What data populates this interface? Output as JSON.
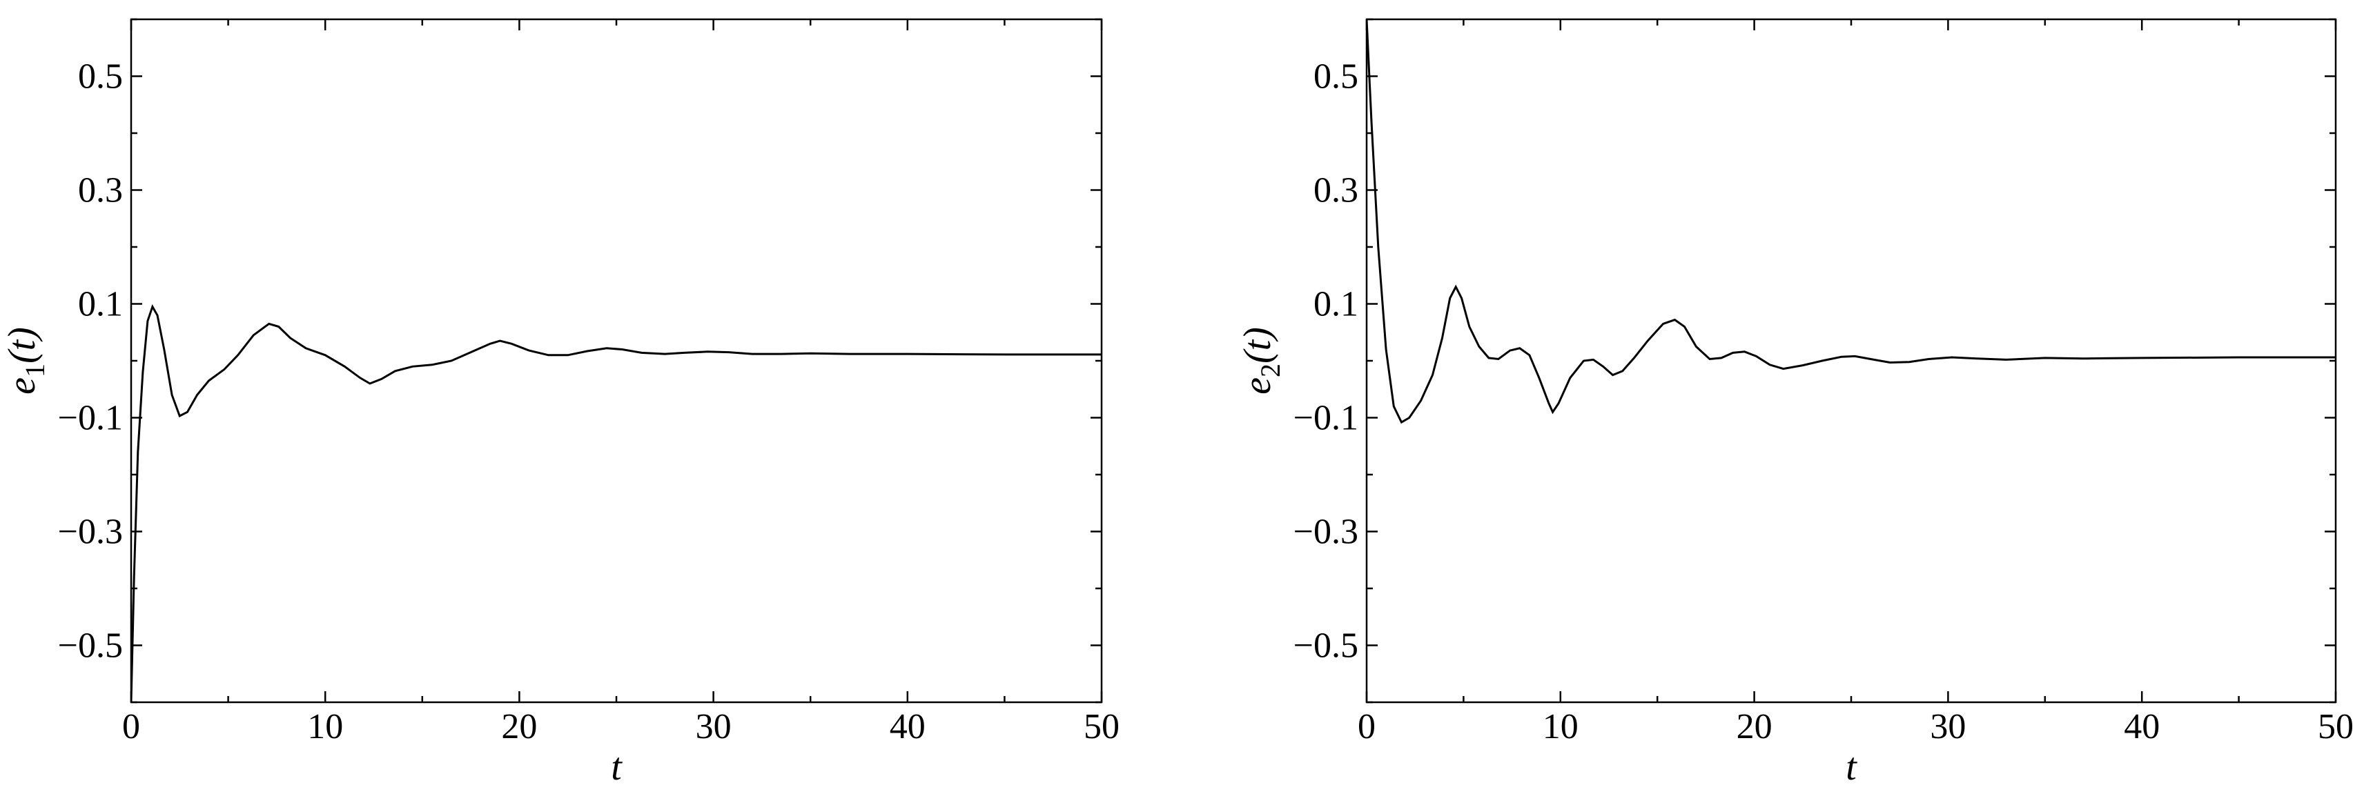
{
  "chart_data": [
    {
      "type": "line",
      "title": "",
      "xlabel": "t",
      "ylabel": {
        "main": "e",
        "sub": "1",
        "arg": "(t)"
      },
      "xlim": [
        0,
        50
      ],
      "ylim": [
        -0.6,
        0.6
      ],
      "xticks": [
        0,
        10,
        20,
        30,
        40,
        50
      ],
      "yticks": [
        -0.5,
        -0.3,
        -0.1,
        0.1,
        0.3,
        0.5
      ],
      "xtick_labels": [
        "0",
        "10",
        "20",
        "30",
        "40",
        "50"
      ],
      "ytick_labels": [
        "−0.5",
        "−0.3",
        "−0.1",
        "0.1",
        "0.3",
        "0.5"
      ],
      "grid": false,
      "series": [
        {
          "color": "#000000",
          "points": [
            [
              0,
              -0.6
            ],
            [
              0.15,
              -0.38
            ],
            [
              0.35,
              -0.16
            ],
            [
              0.6,
              -0.02
            ],
            [
              0.85,
              0.07
            ],
            [
              1.1,
              0.095
            ],
            [
              1.35,
              0.08
            ],
            [
              1.7,
              0.02
            ],
            [
              2.1,
              -0.06
            ],
            [
              2.5,
              -0.097
            ],
            [
              2.9,
              -0.09
            ],
            [
              3.4,
              -0.06
            ],
            [
              4.0,
              -0.035
            ],
            [
              4.8,
              -0.015
            ],
            [
              5.5,
              0.01
            ],
            [
              6.3,
              0.045
            ],
            [
              7.1,
              0.065
            ],
            [
              7.6,
              0.06
            ],
            [
              8.2,
              0.04
            ],
            [
              9.0,
              0.022
            ],
            [
              10.0,
              0.01
            ],
            [
              11.0,
              -0.01
            ],
            [
              11.8,
              -0.03
            ],
            [
              12.3,
              -0.04
            ],
            [
              12.9,
              -0.032
            ],
            [
              13.6,
              -0.018
            ],
            [
              14.5,
              -0.01
            ],
            [
              15.5,
              -0.007
            ],
            [
              16.5,
              0.0
            ],
            [
              17.5,
              0.015
            ],
            [
              18.5,
              0.03
            ],
            [
              19.0,
              0.035
            ],
            [
              19.6,
              0.03
            ],
            [
              20.5,
              0.018
            ],
            [
              21.5,
              0.01
            ],
            [
              22.5,
              0.01
            ],
            [
              23.5,
              0.017
            ],
            [
              24.5,
              0.022
            ],
            [
              25.3,
              0.02
            ],
            [
              26.3,
              0.014
            ],
            [
              27.5,
              0.012
            ],
            [
              28.5,
              0.014
            ],
            [
              29.7,
              0.016
            ],
            [
              30.8,
              0.015
            ],
            [
              32.0,
              0.012
            ],
            [
              33.5,
              0.012
            ],
            [
              35.0,
              0.013
            ],
            [
              37.0,
              0.012
            ],
            [
              40.0,
              0.012
            ],
            [
              45.0,
              0.011
            ],
            [
              50.0,
              0.011
            ]
          ]
        }
      ]
    },
    {
      "type": "line",
      "title": "",
      "xlabel": "t",
      "ylabel": {
        "main": "e",
        "sub": "2",
        "arg": "(t)"
      },
      "xlim": [
        0,
        50
      ],
      "ylim": [
        -0.6,
        0.6
      ],
      "xticks": [
        0,
        10,
        20,
        30,
        40,
        50
      ],
      "yticks": [
        -0.5,
        -0.3,
        -0.1,
        0.1,
        0.3,
        0.5
      ],
      "xtick_labels": [
        "0",
        "10",
        "20",
        "30",
        "40",
        "50"
      ],
      "ytick_labels": [
        "−0.5",
        "−0.3",
        "−0.1",
        "0.1",
        "0.3",
        "0.5"
      ],
      "grid": false,
      "series": [
        {
          "color": "#000000",
          "points": [
            [
              0,
              0.6
            ],
            [
              0.25,
              0.42
            ],
            [
              0.6,
              0.2
            ],
            [
              1.0,
              0.02
            ],
            [
              1.4,
              -0.08
            ],
            [
              1.8,
              -0.108
            ],
            [
              2.2,
              -0.1
            ],
            [
              2.8,
              -0.07
            ],
            [
              3.4,
              -0.025
            ],
            [
              3.9,
              0.04
            ],
            [
              4.3,
              0.11
            ],
            [
              4.6,
              0.13
            ],
            [
              4.9,
              0.11
            ],
            [
              5.3,
              0.06
            ],
            [
              5.8,
              0.025
            ],
            [
              6.3,
              0.005
            ],
            [
              6.8,
              0.003
            ],
            [
              7.4,
              0.018
            ],
            [
              7.9,
              0.022
            ],
            [
              8.4,
              0.01
            ],
            [
              8.9,
              -0.03
            ],
            [
              9.4,
              -0.075
            ],
            [
              9.6,
              -0.09
            ],
            [
              9.9,
              -0.075
            ],
            [
              10.5,
              -0.03
            ],
            [
              11.2,
              0.0
            ],
            [
              11.7,
              0.002
            ],
            [
              12.2,
              -0.01
            ],
            [
              12.7,
              -0.025
            ],
            [
              13.2,
              -0.018
            ],
            [
              13.8,
              0.005
            ],
            [
              14.5,
              0.035
            ],
            [
              15.3,
              0.065
            ],
            [
              15.9,
              0.072
            ],
            [
              16.4,
              0.06
            ],
            [
              17.0,
              0.025
            ],
            [
              17.7,
              0.003
            ],
            [
              18.3,
              0.005
            ],
            [
              18.9,
              0.014
            ],
            [
              19.5,
              0.016
            ],
            [
              20.1,
              0.008
            ],
            [
              20.8,
              -0.007
            ],
            [
              21.5,
              -0.014
            ],
            [
              22.5,
              -0.008
            ],
            [
              23.5,
              0.0
            ],
            [
              24.5,
              0.007
            ],
            [
              25.2,
              0.008
            ],
            [
              26.0,
              0.003
            ],
            [
              27.0,
              -0.003
            ],
            [
              28.0,
              -0.002
            ],
            [
              29.0,
              0.003
            ],
            [
              30.2,
              0.006
            ],
            [
              31.5,
              0.004
            ],
            [
              33.0,
              0.002
            ],
            [
              35.0,
              0.005
            ],
            [
              37.0,
              0.004
            ],
            [
              40.0,
              0.005
            ],
            [
              45.0,
              0.006
            ],
            [
              50.0,
              0.006
            ]
          ]
        }
      ]
    }
  ]
}
